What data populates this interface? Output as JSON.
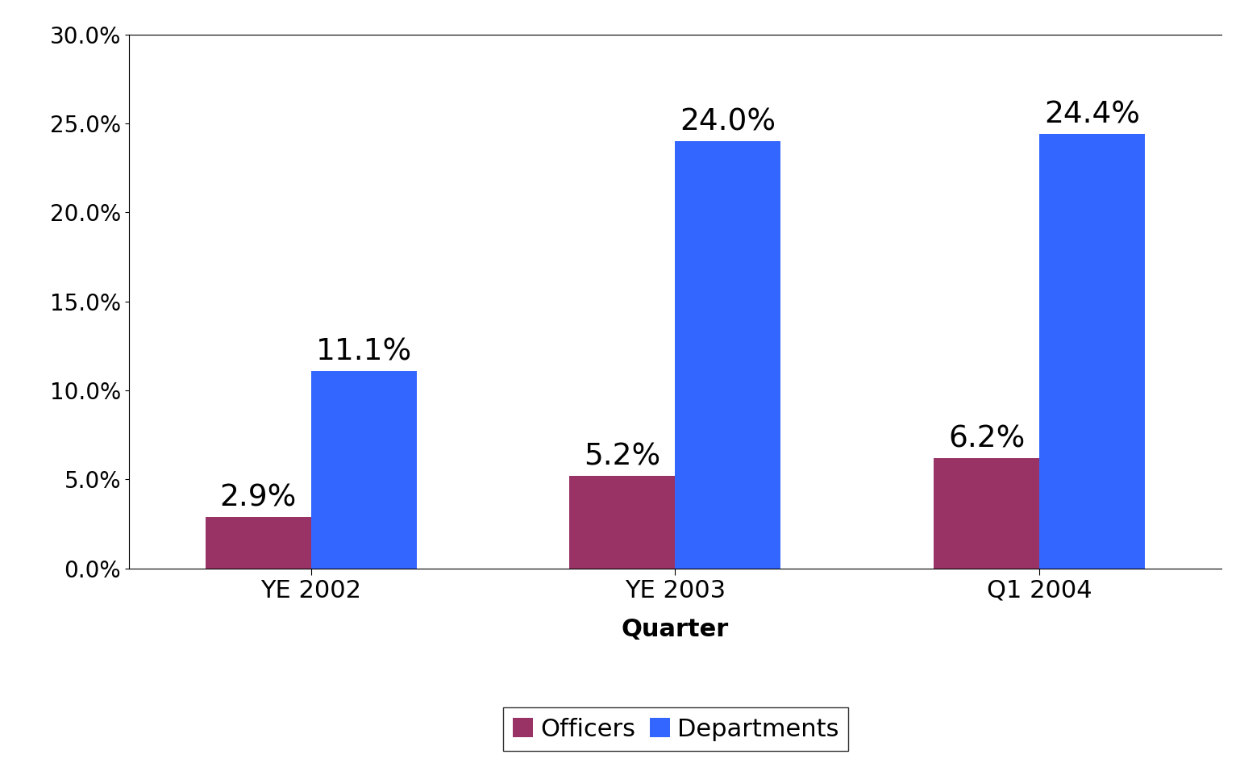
{
  "chart_data": {
    "type": "bar",
    "x_label": "Quarter",
    "categories": [
      "YE 2002",
      "YE 2003",
      "Q1 2004"
    ],
    "series": [
      {
        "name": "Officers",
        "color": "#993366",
        "values": [
          2.9,
          5.2,
          6.2
        ],
        "value_labels": [
          "2.9%",
          "5.2%",
          "6.2%"
        ]
      },
      {
        "name": "Departments",
        "color": "#3366ff",
        "values": [
          11.1,
          24.0,
          24.4
        ],
        "value_labels": [
          "11.1%",
          "24.0%",
          "24.4%"
        ]
      }
    ],
    "ylim": [
      0,
      30
    ],
    "yticks": [
      {
        "value": 0,
        "label": "0.0%"
      },
      {
        "value": 5,
        "label": "5.0%"
      },
      {
        "value": 10,
        "label": "10.0%"
      },
      {
        "value": 15,
        "label": "15.0%"
      },
      {
        "value": 20,
        "label": "20.0%"
      },
      {
        "value": 25,
        "label": "25.0%"
      },
      {
        "value": 30,
        "label": "30.0%"
      }
    ],
    "grid": false,
    "data_labels": true,
    "legend": "lower center"
  }
}
